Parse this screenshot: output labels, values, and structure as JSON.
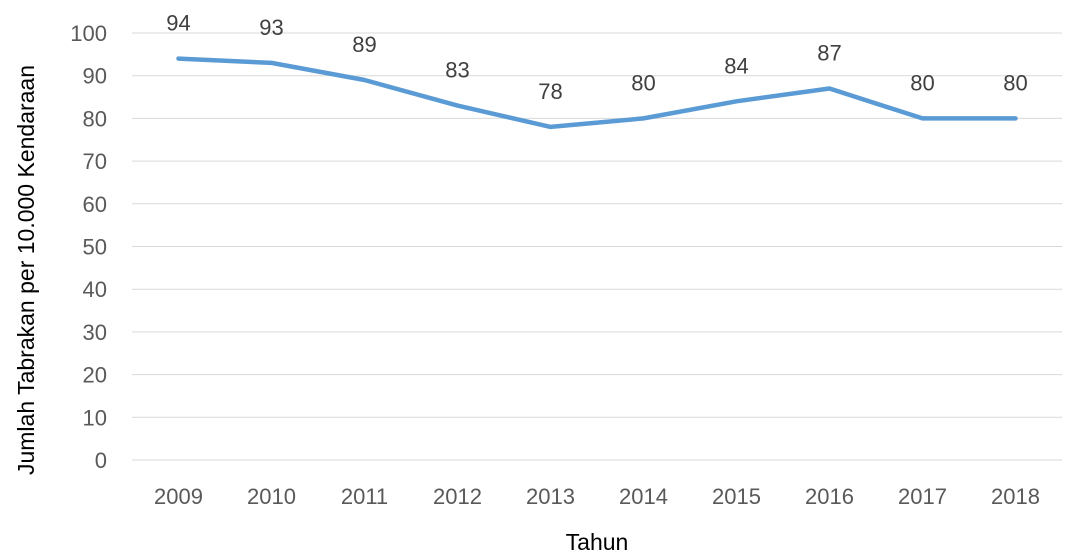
{
  "chart_data": {
    "type": "line",
    "title": "",
    "xlabel": "Tahun",
    "ylabel": "Jumlah Tabrakan per 10.000 Kendaraan",
    "categories": [
      "2009",
      "2010",
      "2011",
      "2012",
      "2013",
      "2014",
      "2015",
      "2016",
      "2017",
      "2018"
    ],
    "series": [
      {
        "values": [
          94,
          93,
          89,
          83,
          78,
          80,
          84,
          87,
          80,
          80
        ],
        "color": "#5b9bd5"
      }
    ],
    "ylim": [
      0,
      100
    ],
    "yticks": [
      "0",
      "10",
      "20",
      "30",
      "40",
      "50",
      "60",
      "70",
      "80",
      "90",
      "100"
    ],
    "data_labels": [
      "94",
      "93",
      "89",
      "83",
      "78",
      "80",
      "84",
      "87",
      "80",
      "80"
    ],
    "grid": true,
    "legend": "none"
  }
}
